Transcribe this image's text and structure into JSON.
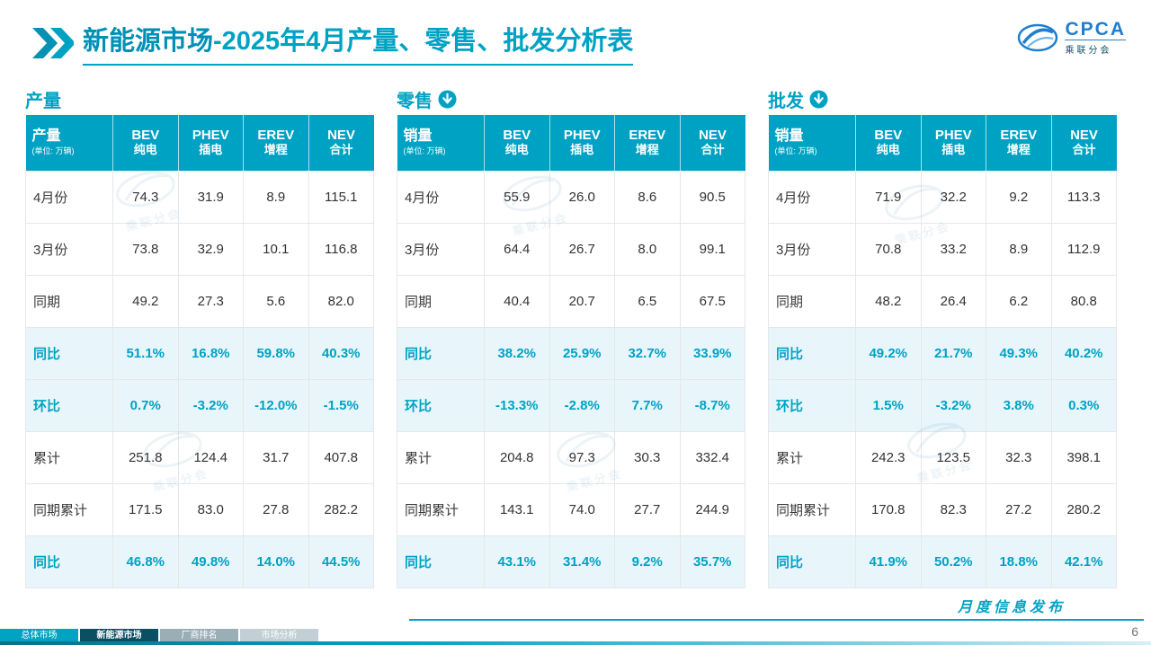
{
  "page": {
    "title_main": "新能源市场",
    "title_rest": "-2025年4月产量、零售、批发分析表",
    "footer_note": "月度信息发布",
    "page_number": "6",
    "watermark": "乘联分会"
  },
  "logo": {
    "brand": "CPCA",
    "subtitle": "乘联分会"
  },
  "colors": {
    "teal": "#00A2C4",
    "highlight_bg": "#E8F6FB",
    "active_tab": "#0B4F63",
    "logo_blue": "#1E7FD0"
  },
  "tables": [
    {
      "section_label": "产量",
      "arrow": false,
      "header_label": "产量",
      "header_unit": "(单位: 万辆)",
      "columns": [
        {
          "en": "BEV",
          "cn": "纯电"
        },
        {
          "en": "PHEV",
          "cn": "插电"
        },
        {
          "en": "EREV",
          "cn": "增程"
        },
        {
          "en": "NEV",
          "cn": "合计"
        }
      ],
      "rows": [
        {
          "label": "4月份",
          "highlight": false,
          "values": [
            "74.3",
            "31.9",
            "8.9",
            "115.1"
          ]
        },
        {
          "label": "3月份",
          "highlight": false,
          "values": [
            "73.8",
            "32.9",
            "10.1",
            "116.8"
          ]
        },
        {
          "label": "同期",
          "highlight": false,
          "values": [
            "49.2",
            "27.3",
            "5.6",
            "82.0"
          ]
        },
        {
          "label": "同比",
          "highlight": true,
          "values": [
            "51.1%",
            "16.8%",
            "59.8%",
            "40.3%"
          ]
        },
        {
          "label": "环比",
          "highlight": true,
          "values": [
            "0.7%",
            "-3.2%",
            "-12.0%",
            "-1.5%"
          ]
        },
        {
          "label": "累计",
          "highlight": false,
          "values": [
            "251.8",
            "124.4",
            "31.7",
            "407.8"
          ]
        },
        {
          "label": "同期累计",
          "highlight": false,
          "values": [
            "171.5",
            "83.0",
            "27.8",
            "282.2"
          ]
        },
        {
          "label": "同比",
          "highlight": true,
          "values": [
            "46.8%",
            "49.8%",
            "14.0%",
            "44.5%"
          ]
        }
      ]
    },
    {
      "section_label": "零售",
      "arrow": true,
      "header_label": "销量",
      "header_unit": "(单位: 万辆)",
      "columns": [
        {
          "en": "BEV",
          "cn": "纯电"
        },
        {
          "en": "PHEV",
          "cn": "插电"
        },
        {
          "en": "EREV",
          "cn": "增程"
        },
        {
          "en": "NEV",
          "cn": "合计"
        }
      ],
      "rows": [
        {
          "label": "4月份",
          "highlight": false,
          "values": [
            "55.9",
            "26.0",
            "8.6",
            "90.5"
          ]
        },
        {
          "label": "3月份",
          "highlight": false,
          "values": [
            "64.4",
            "26.7",
            "8.0",
            "99.1"
          ]
        },
        {
          "label": "同期",
          "highlight": false,
          "values": [
            "40.4",
            "20.7",
            "6.5",
            "67.5"
          ]
        },
        {
          "label": "同比",
          "highlight": true,
          "values": [
            "38.2%",
            "25.9%",
            "32.7%",
            "33.9%"
          ]
        },
        {
          "label": "环比",
          "highlight": true,
          "values": [
            "-13.3%",
            "-2.8%",
            "7.7%",
            "-8.7%"
          ]
        },
        {
          "label": "累计",
          "highlight": false,
          "values": [
            "204.8",
            "97.3",
            "30.3",
            "332.4"
          ]
        },
        {
          "label": "同期累计",
          "highlight": false,
          "values": [
            "143.1",
            "74.0",
            "27.7",
            "244.9"
          ]
        },
        {
          "label": "同比",
          "highlight": true,
          "values": [
            "43.1%",
            "31.4%",
            "9.2%",
            "35.7%"
          ]
        }
      ]
    },
    {
      "section_label": "批发",
      "arrow": true,
      "header_label": "销量",
      "header_unit": "(单位: 万辆)",
      "columns": [
        {
          "en": "BEV",
          "cn": "纯电"
        },
        {
          "en": "PHEV",
          "cn": "插电"
        },
        {
          "en": "EREV",
          "cn": "增程"
        },
        {
          "en": "NEV",
          "cn": "合计"
        }
      ],
      "rows": [
        {
          "label": "4月份",
          "highlight": false,
          "values": [
            "71.9",
            "32.2",
            "9.2",
            "113.3"
          ]
        },
        {
          "label": "3月份",
          "highlight": false,
          "values": [
            "70.8",
            "33.2",
            "8.9",
            "112.9"
          ]
        },
        {
          "label": "同期",
          "highlight": false,
          "values": [
            "48.2",
            "26.4",
            "6.2",
            "80.8"
          ]
        },
        {
          "label": "同比",
          "highlight": true,
          "values": [
            "49.2%",
            "21.7%",
            "49.3%",
            "40.2%"
          ]
        },
        {
          "label": "环比",
          "highlight": true,
          "values": [
            "1.5%",
            "-3.2%",
            "3.8%",
            "0.3%"
          ]
        },
        {
          "label": "累计",
          "highlight": false,
          "values": [
            "242.3",
            "123.5",
            "32.3",
            "398.1"
          ]
        },
        {
          "label": "同期累计",
          "highlight": false,
          "values": [
            "170.8",
            "82.3",
            "27.2",
            "280.2"
          ]
        },
        {
          "label": "同比",
          "highlight": true,
          "values": [
            "41.9%",
            "50.2%",
            "18.8%",
            "42.1%"
          ]
        }
      ]
    }
  ],
  "footer_tabs": [
    {
      "label": "总体市场",
      "active": false,
      "color": "#00A3C2"
    },
    {
      "label": "新能源市场",
      "active": true,
      "color": "#0B4F63"
    },
    {
      "label": "厂商排名",
      "active": false,
      "color": "#9AAEB5"
    },
    {
      "label": "市场分析",
      "active": false,
      "color": "#C2CFD4"
    }
  ]
}
